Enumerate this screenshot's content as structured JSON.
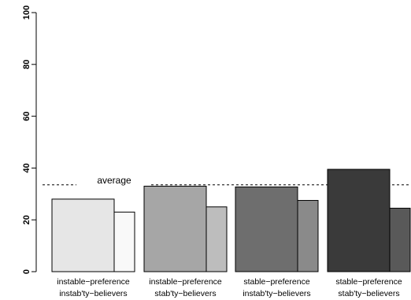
{
  "chart_data": {
    "type": "bar",
    "title": "",
    "xlabel": "",
    "ylabel": "",
    "ylim": [
      0,
      100
    ],
    "yticks": [
      0,
      20,
      40,
      60,
      80,
      100
    ],
    "grid": false,
    "categories": [
      {
        "line1": "instable−preference",
        "line2": "instab'ty−believers"
      },
      {
        "line1": "instable−preference",
        "line2": "stab'ty−believers"
      },
      {
        "line1": "stable−preference",
        "line2": "instab'ty−believers"
      },
      {
        "line1": "stable−preference",
        "line2": "stab'ty−believers"
      }
    ],
    "series": [
      {
        "values": [
          28,
          33,
          32.7,
          39.5
        ],
        "colors": [
          "#e6e6e6",
          "#a6a6a6",
          "#6e6e6e",
          "#3a3a3a"
        ]
      },
      {
        "values": [
          23,
          25,
          27.5,
          24.5
        ],
        "colors": [
          "#f9f9f9",
          "#bdbdbd",
          "#8a8a8a",
          "#595959"
        ]
      }
    ],
    "average": {
      "label": "average",
      "value": 33.5
    }
  }
}
